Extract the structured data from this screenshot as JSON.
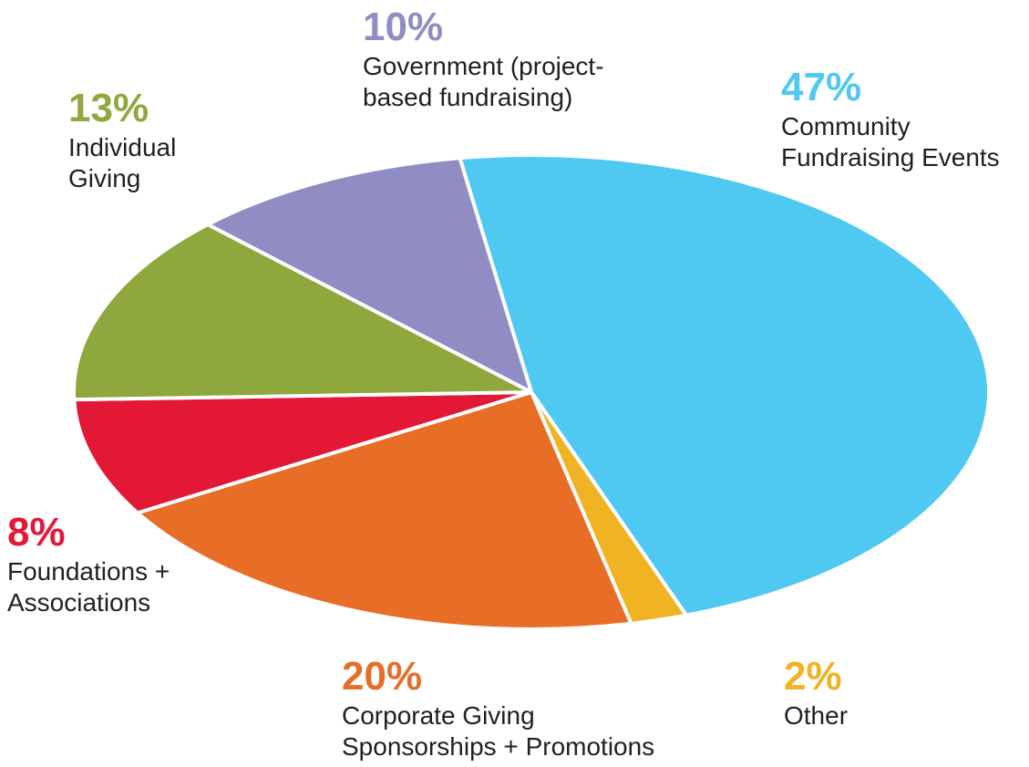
{
  "chart_data": {
    "type": "pie",
    "categories": [
      "Community\nFundraising Events",
      "Other",
      "Corporate Giving\nSponsorships + Promotions",
      "Foundations +\nAssociations",
      "Individual\nGiving",
      "Government (project-\nbased fundraising)"
    ],
    "values": [
      47,
      2,
      20,
      8,
      13,
      10
    ],
    "value_labels": [
      "47%",
      "2%",
      "20%",
      "8%",
      "13%",
      "10%"
    ],
    "colors": [
      "#4fc8f2",
      "#f0b323",
      "#e86e27",
      "#e31837",
      "#8ea83e",
      "#8f8dc3"
    ]
  }
}
